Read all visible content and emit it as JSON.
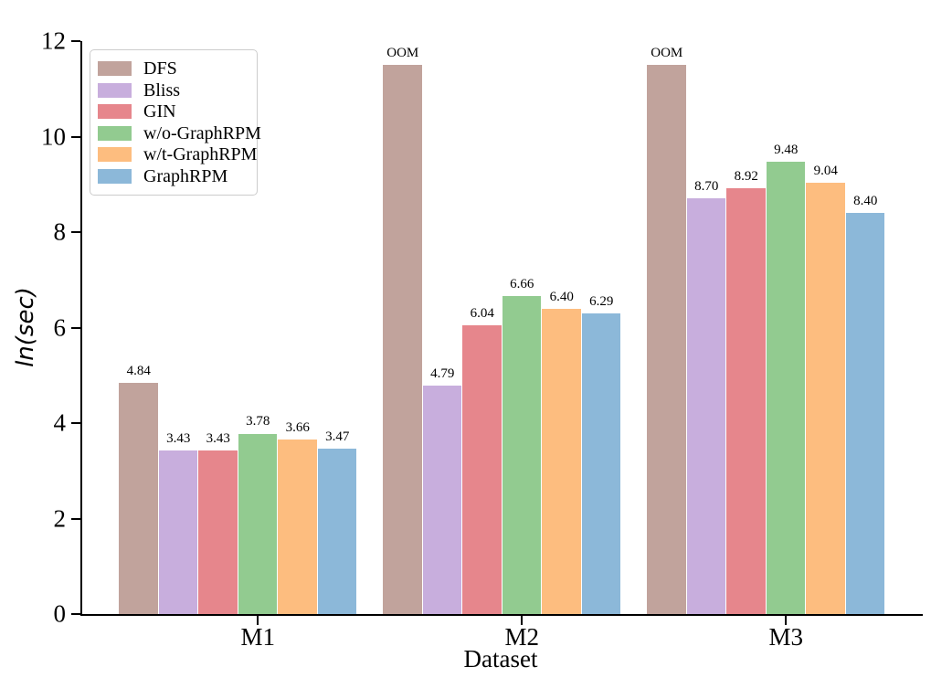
{
  "figure": {
    "background": "#ffffff",
    "axis_color": "#000000"
  },
  "chart_data": {
    "type": "bar",
    "title": "",
    "xlabel": "Dataset",
    "ylabel": "ln(sec)",
    "categories": [
      "M1",
      "M2",
      "M3"
    ],
    "series": [
      {
        "name": "DFS",
        "color": "#c1a39c",
        "values": [
          4.84,
          11.5,
          11.5
        ],
        "bar_labels": [
          "4.84",
          "OOM",
          "OOM"
        ]
      },
      {
        "name": "Bliss",
        "color": "#c8aedd",
        "values": [
          3.43,
          4.79,
          8.7
        ],
        "bar_labels": [
          "3.43",
          "4.79",
          "8.70"
        ]
      },
      {
        "name": "GIN",
        "color": "#e6868c",
        "values": [
          3.43,
          6.04,
          8.92
        ],
        "bar_labels": [
          "3.43",
          "6.04",
          "8.92"
        ]
      },
      {
        "name": "w/o-GraphRPM",
        "color": "#92cb90",
        "values": [
          3.78,
          6.66,
          9.48
        ],
        "bar_labels": [
          "3.78",
          "6.66",
          "9.48"
        ]
      },
      {
        "name": "w/t-GraphRPM",
        "color": "#fdbd7f",
        "values": [
          3.66,
          6.4,
          9.04
        ],
        "bar_labels": [
          "3.66",
          "6.40",
          "9.04"
        ]
      },
      {
        "name": "GraphRPM",
        "color": "#8cb8d9",
        "values": [
          3.47,
          6.29,
          8.4
        ],
        "bar_labels": [
          "3.47",
          "6.29",
          "8.40"
        ]
      }
    ],
    "ylim": [
      0,
      12
    ],
    "yticks": [
      0,
      2,
      4,
      6,
      8,
      10,
      12
    ],
    "grid": false,
    "legend_position": "upper-left",
    "oom_note": "OOM bars for DFS on M2 and M3 are drawn at height 11.5 with label OOM"
  }
}
